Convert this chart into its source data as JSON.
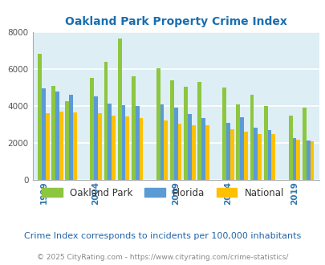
{
  "title": "Oakland Park Property Crime Index",
  "title_color": "#1a6faf",
  "years": [
    1999,
    2000,
    2001,
    2004,
    2005,
    2006,
    2007,
    2008,
    2009,
    2010,
    2011,
    2014,
    2015,
    2016,
    2017,
    2019,
    2020
  ],
  "oakland_park": [
    6800,
    5100,
    4250,
    5500,
    6400,
    7650,
    5600,
    6050,
    5400,
    5050,
    5300,
    5000,
    4100,
    4600,
    4000,
    3500,
    3900
  ],
  "florida": [
    4950,
    4800,
    4600,
    4500,
    4150,
    4050,
    4000,
    4100,
    3900,
    3550,
    3350,
    3100,
    3400,
    2850,
    2700,
    2250,
    2150
  ],
  "national": [
    3600,
    3700,
    3650,
    3600,
    3500,
    3450,
    3350,
    3200,
    3050,
    2950,
    2950,
    2750,
    2600,
    2500,
    2500,
    2200,
    2100
  ],
  "colors": {
    "oakland_park": "#8dc63f",
    "florida": "#5b9bd5",
    "national": "#ffc000"
  },
  "plot_background": "#ddeef5",
  "ylim": [
    0,
    8000
  ],
  "yticks": [
    0,
    2000,
    4000,
    6000,
    8000
  ],
  "tick_label_years": [
    1999,
    2004,
    2009,
    2014,
    2019
  ],
  "legend_labels": [
    "Oakland Park",
    "Florida",
    "National"
  ],
  "note": "Crime Index corresponds to incidents per 100,000 inhabitants",
  "copyright": "© 2025 CityRating.com - https://www.cityrating.com/crime-statistics/",
  "note_color": "#2266aa",
  "copyright_color": "#888888"
}
